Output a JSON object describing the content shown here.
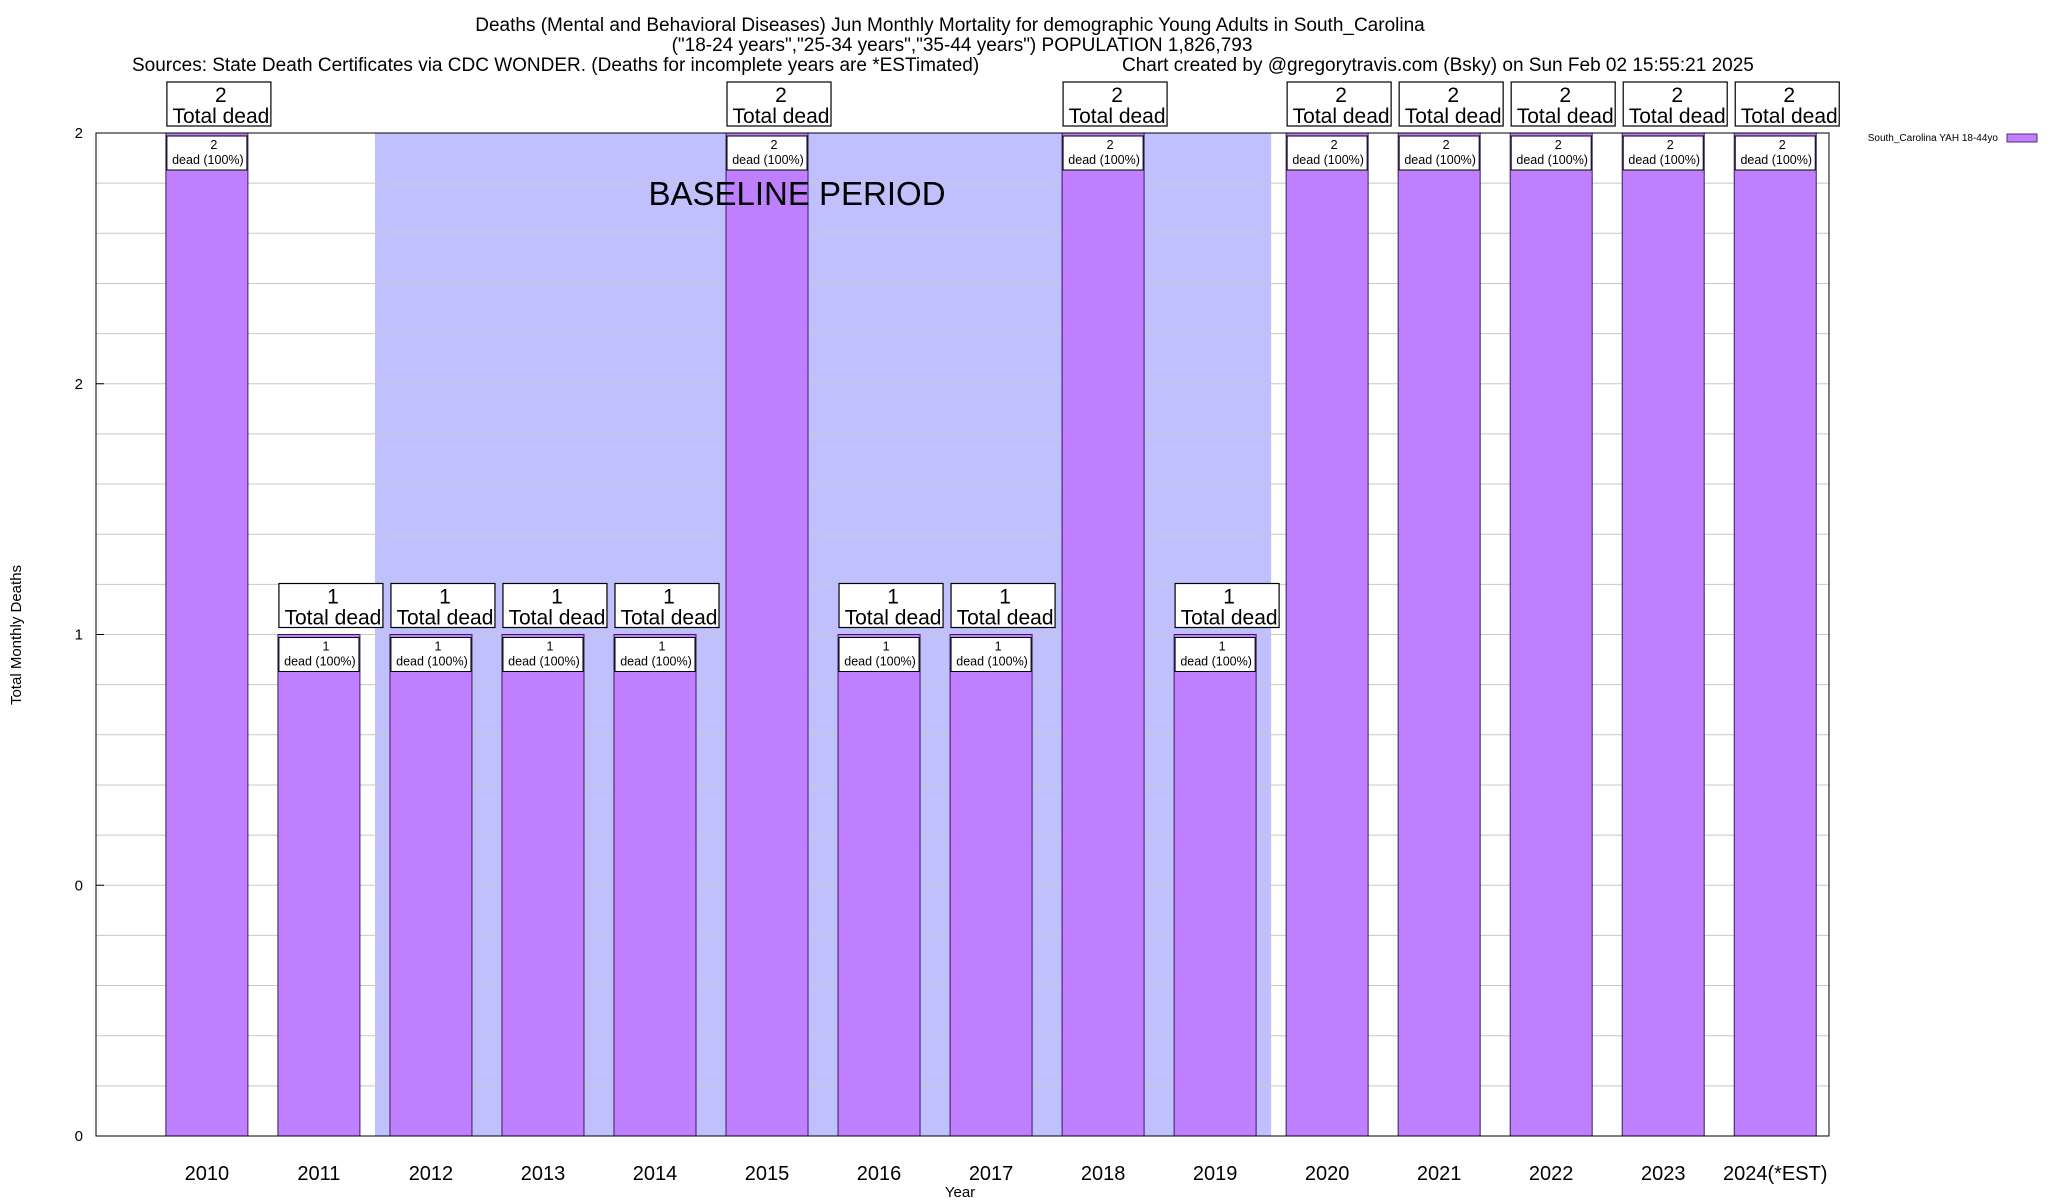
{
  "chart_data": {
    "type": "bar",
    "title_lines": [
      "Deaths (Mental and Behavioral Diseases) Jun Monthly Mortality for demographic Young Adults in South_Carolina",
      "(\"18-24 years\",\"25-34 years\",\"35-44 years\") POPULATION 1,826,793"
    ],
    "sources": "Sources: State Death Certificates via CDC WONDER. (Deaths for incomplete years are *ESTimated)",
    "credit": "Chart created by @gregorytravis.com (Bsky) on Sun Feb 02 15:55:21 2025",
    "xlabel": "Year",
    "ylabel": "Total Monthly Deaths",
    "categories": [
      "2010",
      "2011",
      "2012",
      "2013",
      "2014",
      "2015",
      "2016",
      "2017",
      "2018",
      "2019",
      "2020",
      "2021",
      "2022",
      "2023",
      "2024(*EST)"
    ],
    "series": [
      {
        "name": "South_Carolina YAH 18-44yo",
        "color": "#bf80ff",
        "values": [
          2,
          1,
          1,
          1,
          1,
          2,
          1,
          1,
          2,
          1,
          2,
          2,
          2,
          2,
          2
        ]
      }
    ],
    "total_box_suffix": "Total dead",
    "bar_label_suffix": "dead (100%)",
    "ylim": [
      0,
      2
    ],
    "ytick_labels": [
      "0",
      "0",
      "1",
      "2",
      "2"
    ],
    "baseline": {
      "label": "BASELINE PERIOD",
      "from": "2012",
      "to": "2019",
      "color": "#c0c0ff"
    },
    "grid": true,
    "legend": "top-right"
  }
}
